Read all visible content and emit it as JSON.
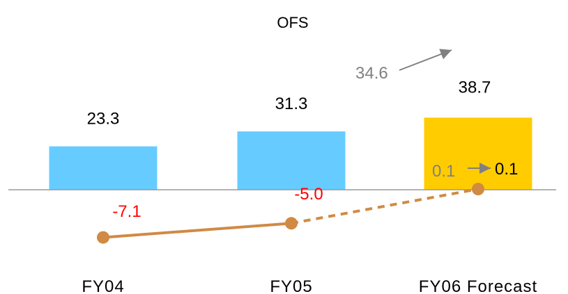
{
  "chart_data": {
    "type": "bar",
    "title": "OFS",
    "categories": [
      "FY04",
      "FY05",
      "FY06 Forecast"
    ],
    "series": [
      {
        "values": [
          23.3,
          31.3,
          38.7
        ],
        "colors": [
          "#66ccff",
          "#66ccff",
          "#ffcc00"
        ]
      },
      {
        "type": "line",
        "values": [
          -7.1,
          -5.0,
          0.1
        ],
        "color": "#d08a44",
        "dashed_last_segment": true
      }
    ],
    "labels": {
      "bars": [
        "23.3",
        "31.3",
        "38.7"
      ],
      "line": [
        "-7.1",
        "-5.0",
        "0.1"
      ]
    },
    "annotations": {
      "bar_previous": "34.6",
      "line_previous": "0.1"
    },
    "colors": {
      "bar_actual": "#66ccff",
      "bar_forecast": "#ffcc00",
      "line": "#d08a44",
      "axis": "#999999",
      "negative_label": "#ff0000",
      "previous_label": "#808080"
    },
    "xlabel": "",
    "ylabel": "",
    "grid": false,
    "legend": "none"
  }
}
